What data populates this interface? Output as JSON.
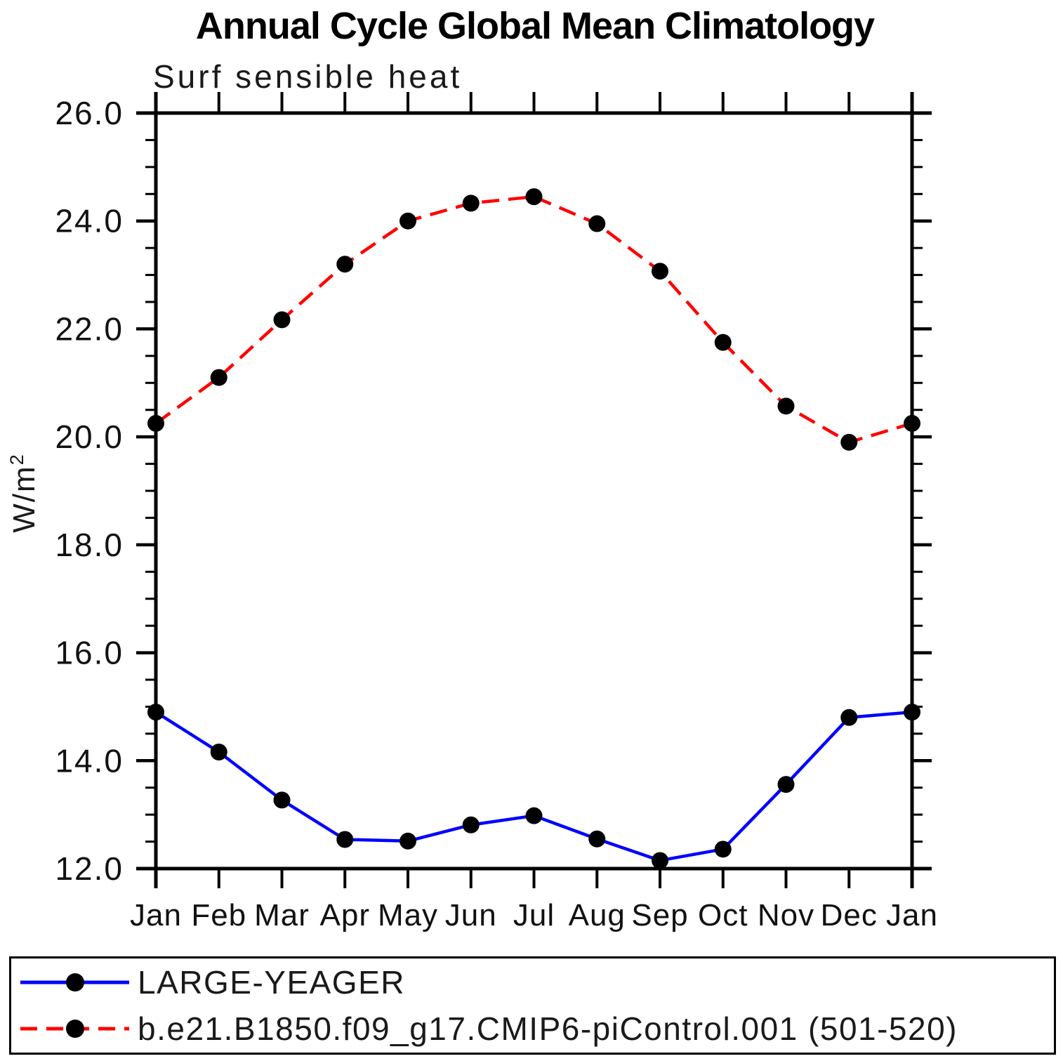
{
  "page": {
    "title": "Annual Cycle Global Mean Climatology"
  },
  "chart_data": {
    "type": "line",
    "title": "Annual Cycle Global Mean Climatology",
    "subtitle": "Surf sensible heat",
    "ylabel": "W/m^2",
    "ylabel_base": "W/m",
    "ylabel_sup": "2",
    "x_categories": [
      "Jan",
      "Feb",
      "Mar",
      "Apr",
      "May",
      "Jun",
      "Jul",
      "Aug",
      "Sep",
      "Oct",
      "Nov",
      "Dec",
      "Jan"
    ],
    "ylim": [
      12.0,
      26.0
    ],
    "y_major_step": 2.0,
    "y_minor_step": 0.5,
    "y_tick_labels": [
      "12.0",
      "14.0",
      "16.0",
      "18.0",
      "20.0",
      "22.0",
      "24.0",
      "26.0"
    ],
    "grid": false,
    "legend_position": "bottom",
    "axis_color": "#000000",
    "marker_color": "#000000",
    "series": [
      {
        "name": "LARGE-YEAGER",
        "color": "#0000ff",
        "line_style": "solid",
        "values": [
          14.9,
          14.16,
          13.27,
          12.54,
          12.51,
          12.81,
          12.98,
          12.55,
          12.15,
          12.36,
          13.56,
          14.8,
          14.9
        ]
      },
      {
        "name": "b.e21.B1850.f09_g17.CMIP6-piControl.001 (501-520)",
        "color": "#ff0000",
        "line_style": "dashed",
        "values": [
          20.25,
          21.1,
          22.17,
          23.2,
          24.0,
          24.33,
          24.45,
          23.95,
          23.07,
          21.75,
          20.57,
          19.9,
          20.25
        ]
      }
    ]
  }
}
